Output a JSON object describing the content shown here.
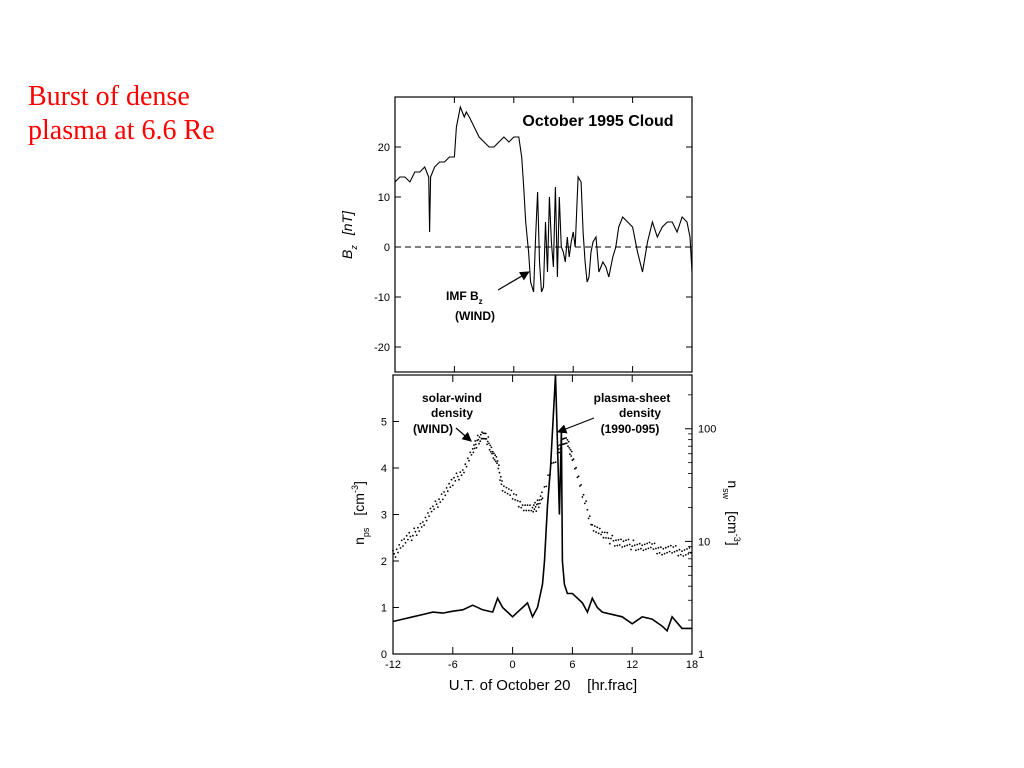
{
  "slide": {
    "title_line1": "Burst of dense",
    "title_line2": "plasma at 6.6 Re",
    "title_color": "#ff0000"
  },
  "chart_data": [
    {
      "type": "line",
      "title": "October 1995 Cloud",
      "ylabel_main": "B",
      "ylabel_sub": "z",
      "ylabel_unit": "[nT]",
      "xlim": [
        -12,
        18
      ],
      "ylim": [
        -25,
        30
      ],
      "yticks": [
        20,
        10,
        0,
        -10,
        -20
      ],
      "zero_line": "dashed",
      "annotation": {
        "line1_main": "IMF B",
        "line1_sub": "z",
        "line2": "(WIND)",
        "points_to": [
          1.5,
          -5
        ]
      },
      "series": [
        {
          "name": "IMF Bz",
          "x": [
            -12,
            -11.5,
            -11,
            -10.5,
            -10,
            -9.5,
            -9,
            -8.6,
            -8.5,
            -8.4,
            -8,
            -7.5,
            -7,
            -6.5,
            -6,
            -5.8,
            -5.6,
            -5.4,
            -5.2,
            -5,
            -4.8,
            -4.5,
            -4,
            -3.5,
            -3,
            -2.5,
            -2,
            -1.5,
            -1,
            -0.5,
            0,
            0.5,
            0.8,
            1,
            1.2,
            1.5,
            1.7,
            2,
            2.2,
            2.4,
            2.6,
            2.8,
            3,
            3.2,
            3.4,
            3.6,
            3.8,
            4,
            4.2,
            4.4,
            4.6,
            4.8,
            5,
            5.2,
            5.4,
            5.6,
            5.8,
            6,
            6.2,
            6.5,
            6.8,
            7,
            7.2,
            7.4,
            7.6,
            7.8,
            8,
            8.3,
            8.6,
            9,
            9.3,
            9.6,
            10,
            10.3,
            10.6,
            11,
            11.5,
            12,
            12.5,
            13,
            13.5,
            14,
            14.5,
            15,
            15.5,
            16,
            16.5,
            17,
            17.5,
            17.8,
            18
          ],
          "values": [
            13,
            14,
            14,
            13,
            15,
            15,
            16,
            14,
            3,
            14,
            16,
            17,
            17,
            18,
            18,
            24,
            26,
            28,
            27,
            26,
            27,
            26,
            24,
            22,
            21,
            20,
            20,
            21,
            22,
            21,
            22,
            22,
            18,
            12,
            5,
            -1,
            -7,
            -9,
            2,
            11,
            -3,
            -9,
            -8,
            5,
            -5,
            10,
            1,
            -4,
            12,
            -6,
            10,
            0,
            -1,
            -3,
            2,
            -2,
            1,
            3,
            0,
            14,
            13,
            3,
            -3,
            -7,
            -6,
            -1,
            1,
            2,
            -5,
            -3,
            -4,
            -6,
            -2,
            0,
            4,
            6,
            5,
            4,
            -1,
            -5,
            1,
            5,
            2,
            4,
            5,
            5,
            3,
            6,
            5,
            2,
            -5
          ]
        }
      ]
    },
    {
      "type": "line",
      "ylabel_left_main": "n",
      "ylabel_left_sub": "ps",
      "ylabel_left_unit_main": "[cm",
      "ylabel_left_unit_sup": "-3",
      "ylabel_left_unit_end": "]",
      "ylabel_right_main": "n",
      "ylabel_right_sub": "sw",
      "ylabel_right_unit_main": "[cm",
      "ylabel_right_unit_sup": "-3",
      "ylabel_right_unit_end": "]",
      "xlabel": "U.T. of October 20    [hr.frac]",
      "xlim": [
        -12,
        18
      ],
      "xticks": [
        -12,
        -6,
        0,
        6,
        12,
        18
      ],
      "ylim": [
        0,
        6
      ],
      "yticks": [
        0,
        1,
        2,
        3,
        4,
        5
      ],
      "yscale_right": "log",
      "ylim_right": [
        1,
        300
      ],
      "yticks_right": [
        1,
        10,
        100
      ],
      "annotations": [
        {
          "line1": "solar-wind",
          "line2": "density",
          "line3": "(WIND)",
          "points_to": [
            -4,
            4.6
          ]
        },
        {
          "line1": "plasma-sheet",
          "line2": "density",
          "line3": "(1990-095)",
          "points_to": [
            4.4,
            4.8
          ]
        }
      ],
      "series": [
        {
          "name": "solar-wind density",
          "style": "dotted",
          "axis": "right",
          "x": [
            -12,
            -11,
            -10,
            -9,
            -8,
            -7,
            -6,
            -5,
            -4,
            -3.5,
            -3,
            -2.5,
            -2,
            -1.5,
            -1,
            0,
            1,
            2,
            2.5,
            3,
            4.5,
            5,
            5.5,
            6,
            7,
            8,
            9,
            10,
            11,
            12,
            13,
            14,
            15,
            16,
            17,
            18
          ],
          "values": [
            7.5,
            9.8,
            11.5,
            14.5,
            19,
            26,
            33,
            43,
            63,
            79,
            88,
            79,
            61,
            48,
            31,
            25,
            21,
            19,
            21,
            26,
            62,
            79,
            74,
            58,
            26,
            14,
            11.5,
            10.2,
            9.6,
            9.3,
            9,
            8.8,
            8.4,
            8.3,
            8.2,
            8.1
          ]
        },
        {
          "name": "plasma-sheet density",
          "style": "solid",
          "axis": "left",
          "x": [
            -12,
            -11,
            -10,
            -9,
            -8,
            -7,
            -6,
            -5,
            -4,
            -3,
            -2,
            -1.5,
            -1,
            -0.5,
            0,
            0.5,
            1,
            1.5,
            2,
            2.5,
            3,
            3.2,
            3.5,
            3.8,
            4,
            4.2,
            4.3,
            4.5,
            4.7,
            4.9,
            5,
            5.2,
            5.5,
            6,
            6.5,
            7,
            7.5,
            8,
            8.5,
            9,
            11,
            12,
            13,
            14,
            15,
            15.5,
            16,
            17,
            18
          ],
          "values": [
            0.7,
            0.75,
            0.8,
            0.85,
            0.9,
            0.88,
            0.92,
            0.95,
            1.05,
            0.95,
            0.9,
            1.2,
            1.0,
            0.9,
            0.8,
            0.9,
            1.0,
            1.1,
            0.8,
            1.0,
            1.5,
            2.0,
            3.2,
            4.0,
            4.8,
            5.6,
            6.0,
            4.5,
            3.0,
            4.8,
            2.0,
            1.5,
            1.3,
            1.3,
            1.2,
            1.1,
            0.9,
            1.2,
            1.0,
            0.9,
            0.8,
            0.65,
            0.8,
            0.75,
            0.6,
            0.5,
            0.8,
            0.55,
            0.55
          ]
        }
      ]
    }
  ]
}
